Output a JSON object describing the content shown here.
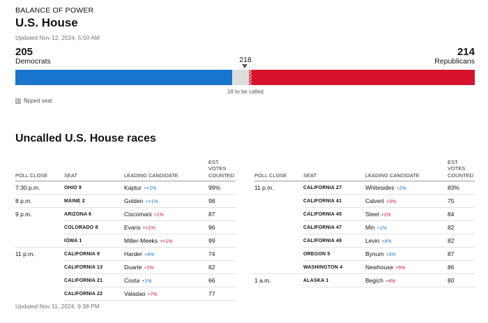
{
  "kicker": "BALANCE OF POWER",
  "title": "U.S. House",
  "updated_top": "Updated Nov 12, 2024, 5:50 AM",
  "chart_data": {
    "type": "bar",
    "title": "U.S. House",
    "total_seats": 435,
    "majority": 218,
    "majority_label": "218",
    "series": [
      {
        "name": "Democrats",
        "value": 205,
        "color": "#1a75cf"
      },
      {
        "name": "Uncalled",
        "value": 16,
        "color": "#dddddd"
      },
      {
        "name": "Republicans",
        "value": 214,
        "color": "#d6132a"
      }
    ],
    "dem_label": "Democrats",
    "dem_value": "205",
    "rep_label": "Republicans",
    "rep_value": "214",
    "rep_flipped": 3,
    "uncalled_note": "16 to be called",
    "legend": "flipped seat"
  },
  "section_title": "Uncalled U.S. House races",
  "columns": [
    "POLL CLOSE",
    "SEAT",
    "LEADING CANDIDATE",
    "EST. VOTES COUNTED"
  ],
  "left_rows": [
    {
      "time": "7:30 p.m.",
      "seat": "OHIO 9",
      "candidate": "Kaptur",
      "margin": "+<1%",
      "party": "dem",
      "votes": "99%"
    },
    {
      "time": "8 p.m.",
      "seat": "MAINE 2",
      "candidate": "Golden",
      "margin": "+<1%",
      "party": "dem",
      "votes": "98"
    },
    {
      "time": "9 p.m.",
      "seat": "ARIZONA 6",
      "candidate": "Ciscomani",
      "margin": "+1%",
      "party": "rep",
      "votes": "87"
    },
    {
      "time": "",
      "seat": "COLORADO 8",
      "candidate": "Evans",
      "margin": "+<1%",
      "party": "rep",
      "votes": "96"
    },
    {
      "time": "",
      "seat": "IOWA 1",
      "candidate": "Miller-Meeks",
      "margin": "+<1%",
      "party": "rep",
      "votes": "99"
    },
    {
      "time": "11 p.m.",
      "seat": "CALIFORNIA 9",
      "candidate": "Harder",
      "margin": "+4%",
      "party": "dem",
      "votes": "74"
    },
    {
      "time": "",
      "seat": "CALIFORNIA 13",
      "candidate": "Duarte",
      "margin": "+2%",
      "party": "rep",
      "votes": "62"
    },
    {
      "time": "",
      "seat": "CALIFORNIA 21",
      "candidate": "Costa",
      "margin": "+1%",
      "party": "dem",
      "votes": "66"
    },
    {
      "time": "",
      "seat": "CALIFORNIA 22",
      "candidate": "Valadao",
      "margin": "+7%",
      "party": "rep",
      "votes": "77"
    }
  ],
  "right_rows": [
    {
      "time": "11 p.m.",
      "seat": "CALIFORNIA 27",
      "candidate": "Whitesides",
      "margin": "+2%",
      "party": "dem",
      "votes": "83%"
    },
    {
      "time": "",
      "seat": "CALIFORNIA 41",
      "candidate": "Calvert",
      "margin": "+3%",
      "party": "rep",
      "votes": "75"
    },
    {
      "time": "",
      "seat": "CALIFORNIA 45",
      "candidate": "Steel",
      "margin": "+1%",
      "party": "rep",
      "votes": "84"
    },
    {
      "time": "",
      "seat": "CALIFORNIA 47",
      "candidate": "Min",
      "margin": "+1%",
      "party": "dem",
      "votes": "82"
    },
    {
      "time": "",
      "seat": "CALIFORNIA 49",
      "candidate": "Levin",
      "margin": "+4%",
      "party": "dem",
      "votes": "82"
    },
    {
      "time": "",
      "seat": "OREGON 5",
      "candidate": "Bynum",
      "margin": "+3%",
      "party": "dem",
      "votes": "87"
    },
    {
      "time": "",
      "seat": "WASHINGTON 4",
      "candidate": "Newhouse",
      "margin": "+5%",
      "party": "rep",
      "votes": "86"
    },
    {
      "time": "1 a.m.",
      "seat": "ALASKA 1",
      "candidate": "Begich",
      "margin": "+4%",
      "party": "rep",
      "votes": "80"
    }
  ],
  "updated_bottom": "Updated Nov 11, 2024, 9:38 PM"
}
